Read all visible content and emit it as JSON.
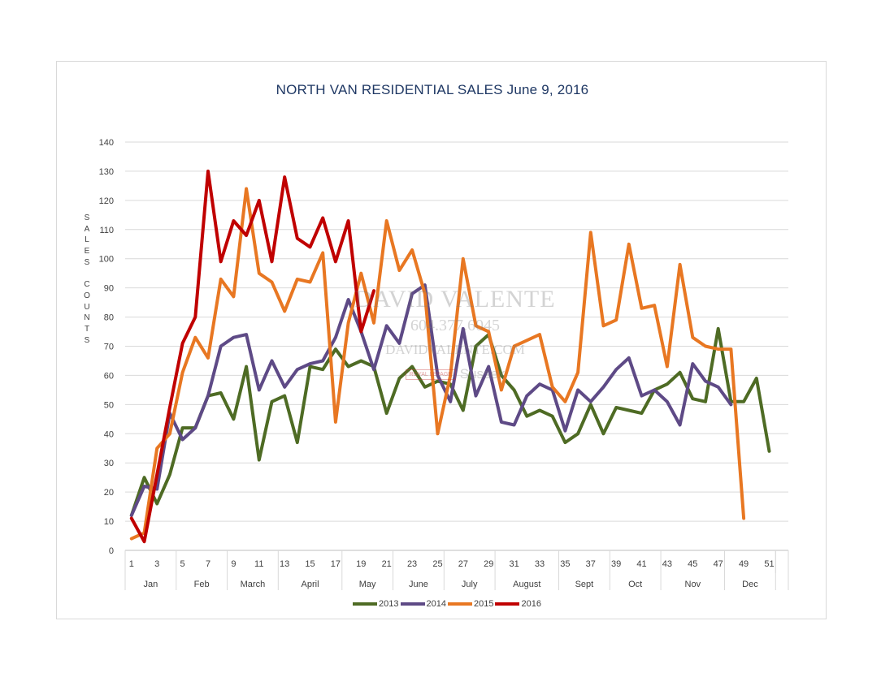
{
  "chart_data": {
    "type": "line",
    "title": "NORTH VAN RESIDENTIAL SALES June 9, 2016",
    "ylabel": "SALES COUNTS",
    "ylim": [
      0,
      140
    ],
    "yticks": [
      0,
      10,
      20,
      30,
      40,
      50,
      60,
      70,
      80,
      90,
      100,
      110,
      120,
      130,
      140
    ],
    "xlim": [
      1,
      53
    ],
    "xticks": [
      "1",
      "3",
      "5",
      "7",
      "9",
      "11",
      "13",
      "15",
      "17",
      "19",
      "21",
      "23",
      "25",
      "27",
      "29",
      "31",
      "33",
      "35",
      "37",
      "39",
      "41",
      "43",
      "45",
      "47",
      "49",
      "51"
    ],
    "months": [
      {
        "label": "Jan",
        "start": 1,
        "end": 4
      },
      {
        "label": "Feb",
        "start": 5,
        "end": 8
      },
      {
        "label": "March",
        "start": 9,
        "end": 12
      },
      {
        "label": "April",
        "start": 13,
        "end": 17
      },
      {
        "label": "May",
        "start": 18,
        "end": 21
      },
      {
        "label": "June",
        "start": 22,
        "end": 25
      },
      {
        "label": "July",
        "start": 26,
        "end": 29
      },
      {
        "label": "August",
        "start": 30,
        "end": 34
      },
      {
        "label": "Sept",
        "start": 35,
        "end": 38
      },
      {
        "label": "Oct",
        "start": 39,
        "end": 42
      },
      {
        "label": "Nov",
        "start": 43,
        "end": 47
      },
      {
        "label": "Dec",
        "start": 48,
        "end": 51
      }
    ],
    "grid": true,
    "legend_position": "bottom",
    "series": [
      {
        "name": "2013",
        "color": "#4e6b24",
        "start": 1,
        "values": [
          12,
          25,
          16,
          26,
          42,
          42,
          53,
          54,
          45,
          63,
          31,
          51,
          53,
          37,
          63,
          62,
          69,
          63,
          65,
          63,
          47,
          59,
          63,
          56,
          58,
          57,
          48,
          70,
          74,
          60,
          55,
          46,
          48,
          46,
          37,
          40,
          50,
          40,
          49,
          48,
          47,
          55,
          57,
          61,
          52,
          51,
          76,
          51,
          51,
          59,
          34
        ]
      },
      {
        "name": "2014",
        "color": "#5e4a86",
        "start": 1,
        "values": [
          12,
          22,
          21,
          47,
          38,
          42,
          53,
          70,
          73,
          74,
          55,
          65,
          56,
          62,
          64,
          65,
          73,
          86,
          75,
          62,
          77,
          71,
          88,
          91,
          60,
          51,
          76,
          53,
          63,
          44,
          43,
          53,
          57,
          55,
          41,
          55,
          51,
          56,
          62,
          66,
          53,
          55,
          51,
          43,
          64,
          58,
          56,
          50
        ]
      },
      {
        "name": "2015",
        "color": "#e87722",
        "start": 1,
        "values": [
          4,
          6,
          35,
          40,
          61,
          73,
          66,
          93,
          87,
          124,
          95,
          92,
          82,
          93,
          92,
          102,
          44,
          78,
          95,
          78,
          113,
          96,
          103,
          88,
          40,
          60,
          100,
          77,
          75,
          55,
          70,
          72,
          74,
          56,
          51,
          61,
          109,
          77,
          79,
          105,
          83,
          84,
          63,
          98,
          73,
          70,
          69,
          69,
          11
        ]
      },
      {
        "name": "2016",
        "color": "#c00000",
        "start": 1,
        "values": [
          11,
          3,
          26,
          49,
          71,
          80,
          130,
          99,
          113,
          108,
          120,
          99,
          128,
          107,
          104,
          114,
          99,
          113,
          75,
          89
        ]
      }
    ]
  },
  "watermark": {
    "name": "DAVID VALENTE",
    "phone": "604.377.6045",
    "site": "DAVIDVALENTE.COM",
    "brand_tag": "ROYAL LEPAGE",
    "brand_name": "Sussex"
  }
}
